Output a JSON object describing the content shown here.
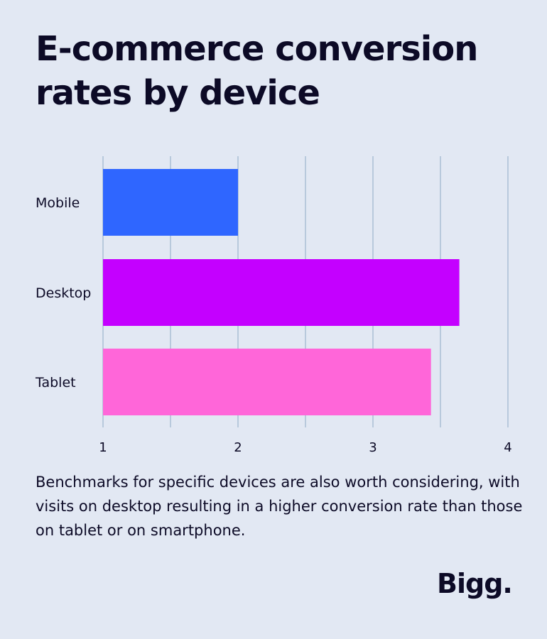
{
  "title": "E-commerce conversion rates by device",
  "caption": "Benchmarks for specific devices are also worth considering, with visits on desktop resulting in a higher conversion rate than those on tablet or on smartphone.",
  "logo": "Bigg.",
  "colors": {
    "background": "#e2e8f3",
    "text": "#0c0a26",
    "grid": "#b8c9dc",
    "mobile": "#2f66ff",
    "desktop": "#c400ff",
    "tablet": "#ff66d9"
  },
  "chart_data": {
    "type": "bar",
    "orientation": "horizontal",
    "title": "E-commerce conversion rates by device",
    "xlabel": "",
    "ylabel": "",
    "categories": [
      "Mobile",
      "Desktop",
      "Tablet"
    ],
    "values": [
      2.0,
      3.64,
      3.43
    ],
    "xlim": [
      1,
      4
    ],
    "ticks": [
      1,
      2,
      3,
      4
    ],
    "grid": true,
    "bar_colors": [
      "#2f66ff",
      "#c400ff",
      "#ff66d9"
    ]
  }
}
